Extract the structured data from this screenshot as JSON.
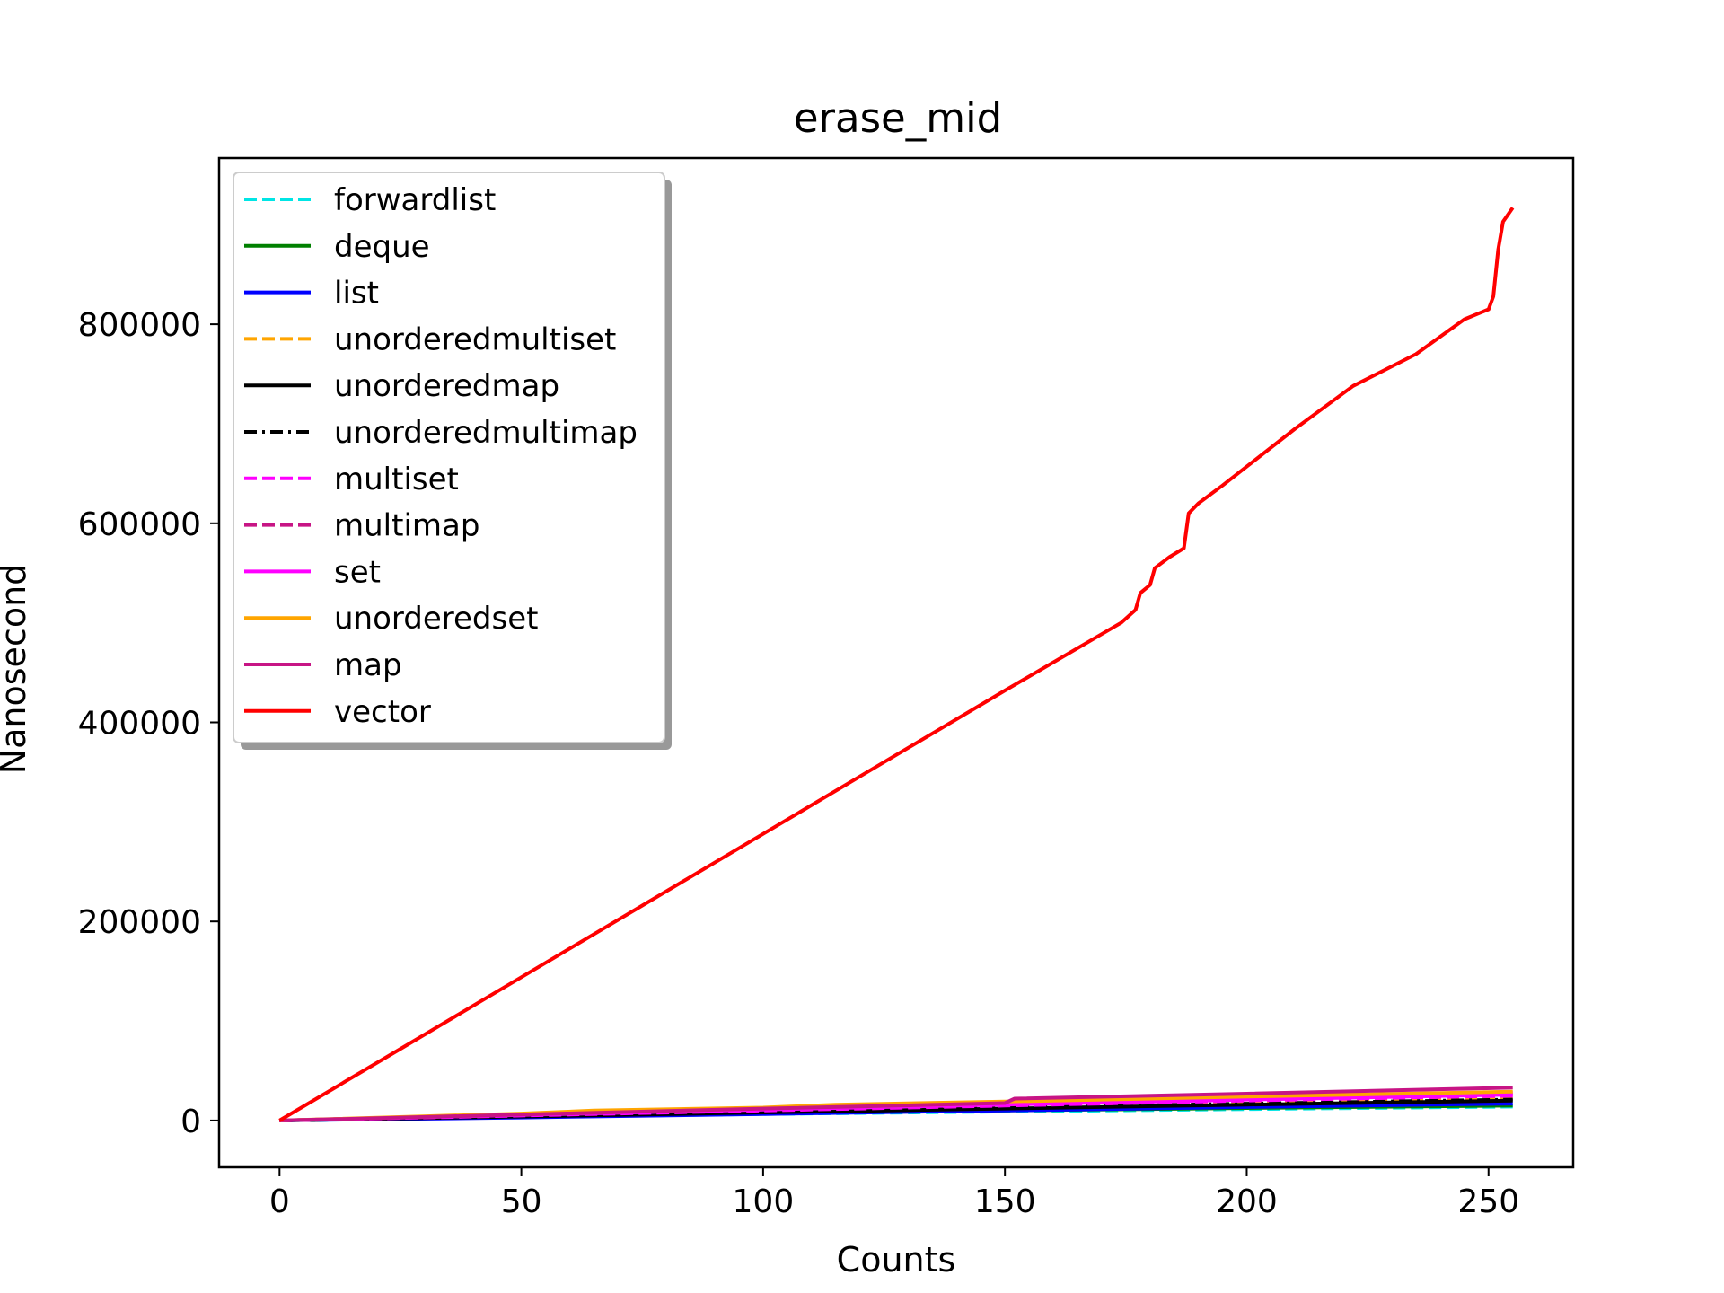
{
  "chart_data": {
    "type": "line",
    "title": "erase_mid",
    "xlabel": "Counts",
    "ylabel": "Nanosecond",
    "xlim": [
      -12.5,
      267.5
    ],
    "ylim": [
      -47000,
      967000
    ],
    "xticks": [
      0,
      50,
      100,
      150,
      200,
      250
    ],
    "yticks": [
      0,
      200000,
      400000,
      600000,
      800000
    ],
    "grid": false,
    "legend_position": "upper-left",
    "series": [
      {
        "name": "forwardlist",
        "color": "#00e5e5",
        "dash": "dashed",
        "points": [
          [
            0,
            0
          ],
          [
            50,
            3500
          ],
          [
            100,
            6500
          ],
          [
            150,
            9000
          ],
          [
            200,
            11500
          ],
          [
            255,
            14000
          ]
        ]
      },
      {
        "name": "deque",
        "color": "#008000",
        "dash": "solid",
        "points": [
          [
            0,
            0
          ],
          [
            50,
            3800
          ],
          [
            100,
            7000
          ],
          [
            150,
            10000
          ],
          [
            200,
            12500
          ],
          [
            255,
            15000
          ]
        ]
      },
      {
        "name": "list",
        "color": "#0000ff",
        "dash": "solid",
        "points": [
          [
            0,
            0
          ],
          [
            50,
            3000
          ],
          [
            100,
            6500
          ],
          [
            150,
            10000
          ],
          [
            200,
            13500
          ],
          [
            255,
            17000
          ]
        ]
      },
      {
        "name": "unorderedmultiset",
        "color": "#ffa500",
        "dash": "dashed",
        "points": [
          [
            0,
            0
          ],
          [
            50,
            5000
          ],
          [
            100,
            9500
          ],
          [
            150,
            14000
          ],
          [
            200,
            18000
          ],
          [
            255,
            22000
          ]
        ]
      },
      {
        "name": "unorderedmap",
        "color": "#000000",
        "dash": "solid",
        "points": [
          [
            0,
            0
          ],
          [
            50,
            4000
          ],
          [
            100,
            8000
          ],
          [
            150,
            12000
          ],
          [
            200,
            16000
          ],
          [
            255,
            20000
          ]
        ]
      },
      {
        "name": "unorderedmultimap",
        "color": "#000000",
        "dash": "dashdot",
        "points": [
          [
            0,
            0
          ],
          [
            50,
            4500
          ],
          [
            100,
            9000
          ],
          [
            150,
            13000
          ],
          [
            200,
            17000
          ],
          [
            255,
            21000
          ]
        ]
      },
      {
        "name": "multiset",
        "color": "#ff00ff",
        "dash": "dashed",
        "points": [
          [
            0,
            0
          ],
          [
            50,
            5000
          ],
          [
            100,
            10000
          ],
          [
            150,
            15000
          ],
          [
            200,
            20000
          ],
          [
            255,
            25000
          ]
        ]
      },
      {
        "name": "multimap",
        "color": "#c71585",
        "dash": "dashed",
        "points": [
          [
            0,
            0
          ],
          [
            50,
            6000
          ],
          [
            100,
            11000
          ],
          [
            150,
            16000
          ],
          [
            200,
            22000
          ],
          [
            255,
            28000
          ]
        ]
      },
      {
        "name": "set",
        "color": "#ff00ff",
        "dash": "solid",
        "points": [
          [
            0,
            0
          ],
          [
            50,
            5500
          ],
          [
            100,
            11000
          ],
          [
            150,
            16000
          ],
          [
            200,
            21000
          ],
          [
            255,
            26000
          ]
        ]
      },
      {
        "name": "unorderedset",
        "color": "#ffa500",
        "dash": "solid",
        "points": [
          [
            0,
            0
          ],
          [
            50,
            7000
          ],
          [
            65,
            10000
          ],
          [
            100,
            13000
          ],
          [
            115,
            16000
          ],
          [
            150,
            19000
          ],
          [
            200,
            24000
          ],
          [
            255,
            29000
          ]
        ]
      },
      {
        "name": "map",
        "color": "#c71585",
        "dash": "solid",
        "points": [
          [
            0,
            0
          ],
          [
            50,
            6000
          ],
          [
            100,
            12000
          ],
          [
            150,
            17500
          ],
          [
            152,
            22000
          ],
          [
            200,
            27000
          ],
          [
            255,
            33000
          ]
        ]
      },
      {
        "name": "vector",
        "color": "#ff0000",
        "dash": "solid",
        "points": [
          [
            0,
            0
          ],
          [
            25,
            72000
          ],
          [
            50,
            144000
          ],
          [
            75,
            216000
          ],
          [
            100,
            288000
          ],
          [
            125,
            360000
          ],
          [
            150,
            432000
          ],
          [
            174,
            500000
          ],
          [
            177,
            513000
          ],
          [
            178,
            530000
          ],
          [
            180,
            538000
          ],
          [
            181,
            555000
          ],
          [
            184,
            566000
          ],
          [
            187,
            575000
          ],
          [
            188,
            610000
          ],
          [
            190,
            620000
          ],
          [
            195,
            638000
          ],
          [
            200,
            657000
          ],
          [
            210,
            695000
          ],
          [
            222,
            738000
          ],
          [
            235,
            770000
          ],
          [
            245,
            805000
          ],
          [
            250,
            815000
          ],
          [
            251,
            828000
          ],
          [
            252,
            875000
          ],
          [
            253,
            903000
          ],
          [
            255,
            917000
          ]
        ]
      }
    ]
  }
}
